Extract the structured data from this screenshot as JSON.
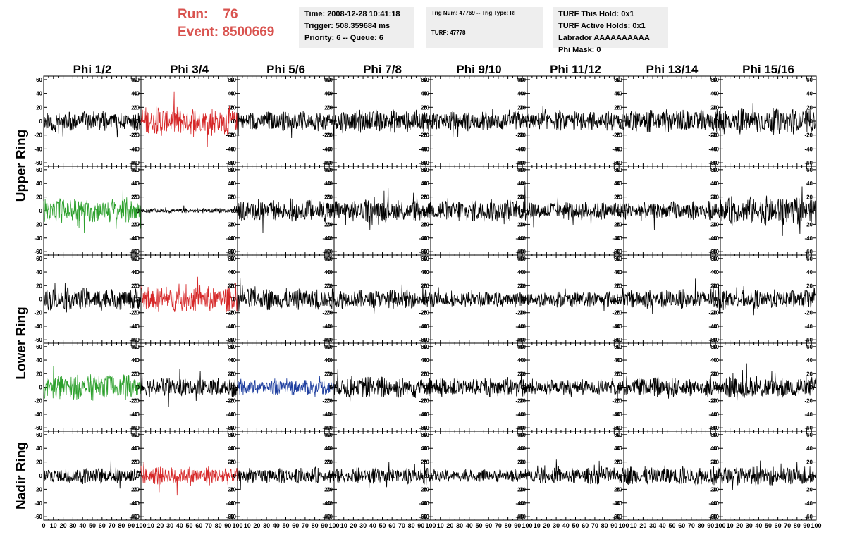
{
  "header": {
    "run_label": "Run:",
    "run_value": "76",
    "event_label": "Event:",
    "event_value": "8500669",
    "info_time": [
      "Time: 2008-12-28 10:41:18",
      "Trigger: 508.359684 ms",
      "Priority: 6 -- Queue: 6"
    ],
    "info_trig": [
      "Trig Num: 47769 -- Trig Type: RF",
      "",
      "TURF: 47778"
    ],
    "info_turf": [
      "TURF This Hold: 0x1",
      "TURF Active Holds: 0x1",
      "Labrador AAAAAAAAAA",
      "Phi Mask: 0"
    ]
  },
  "colors": {
    "header_red": "#d9534f",
    "box_bg": "#eeeeee",
    "trace_black": "#000000",
    "trace_red": "#d62728",
    "trace_green": "#2ca02c",
    "trace_blue": "#1f3f9f"
  },
  "chart_data": {
    "type": "line",
    "columns": [
      "Phi 1/2",
      "Phi 3/4",
      "Phi 5/6",
      "Phi 7/8",
      "Phi 9/10",
      "Phi 11/12",
      "Phi 13/14",
      "Phi 15/16"
    ],
    "row_groups": [
      {
        "label": "Upper Ring",
        "rows": [
          0,
          1
        ]
      },
      {
        "label": "Lower Ring",
        "rows": [
          2,
          3
        ]
      },
      {
        "label": "Nadir Ring",
        "rows": [
          4
        ]
      }
    ],
    "xlim": [
      0,
      100
    ],
    "ylim": [
      -65,
      65
    ],
    "y_ticks": [
      -60,
      -40,
      -20,
      0,
      20,
      40,
      60
    ],
    "x_ticks": [
      0,
      10,
      20,
      30,
      40,
      50,
      60,
      70,
      80,
      90,
      100
    ],
    "x_tick_labels": [
      "0",
      "10",
      "20",
      "30",
      "40",
      "50",
      "60",
      "70",
      "80",
      "90",
      "100"
    ],
    "grid": false,
    "panel_colors": [
      [
        "black",
        "red",
        "black",
        "black",
        "black",
        "black",
        "black",
        "black"
      ],
      [
        "green",
        "black",
        "black",
        "black",
        "black",
        "black",
        "black",
        "black"
      ],
      [
        "black",
        "red",
        "black",
        "black",
        "black",
        "black",
        "black",
        "black"
      ],
      [
        "green",
        "black",
        "blue",
        "black",
        "black",
        "black",
        "black",
        "black"
      ],
      [
        "black",
        "red",
        "black",
        "black",
        "black",
        "black",
        "black",
        "black"
      ]
    ],
    "panel_amplitudes": [
      [
        12,
        18,
        12,
        14,
        12,
        12,
        14,
        16
      ],
      [
        16,
        3,
        14,
        14,
        14,
        12,
        12,
        18
      ],
      [
        14,
        16,
        14,
        12,
        10,
        10,
        12,
        12
      ],
      [
        16,
        12,
        10,
        14,
        12,
        10,
        12,
        14
      ],
      [
        10,
        12,
        10,
        10,
        8,
        10,
        12,
        12
      ]
    ]
  }
}
